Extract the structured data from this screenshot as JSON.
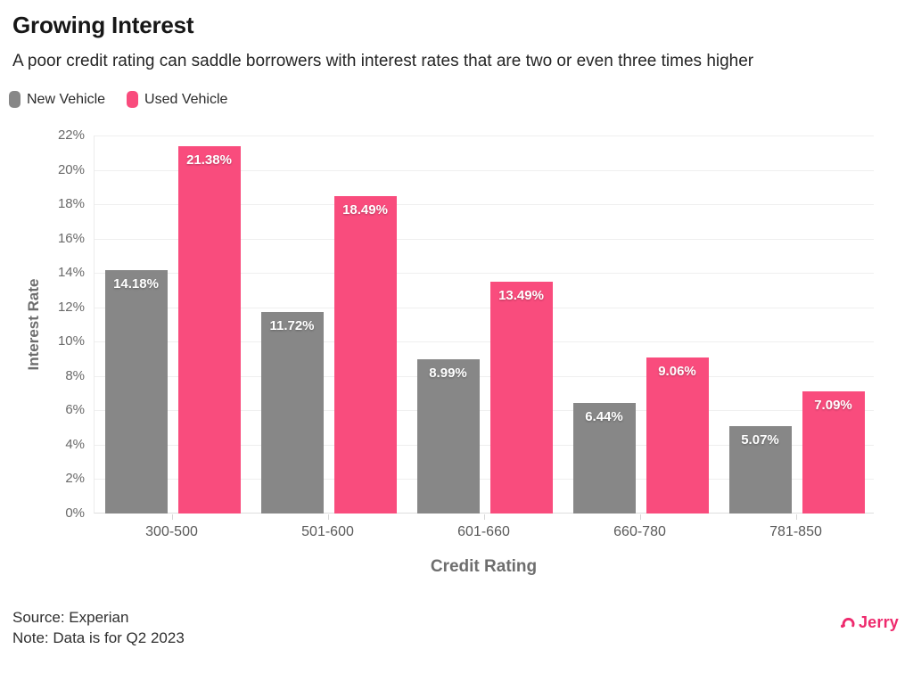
{
  "header": {
    "title": "Growing Interest",
    "subtitle": "A poor credit rating can saddle borrowers with interest rates that are two or even three times higher"
  },
  "legend": [
    {
      "label": "New Vehicle",
      "color": "#878787"
    },
    {
      "label": "Used Vehicle",
      "color": "#F94C7D"
    }
  ],
  "chart_data": {
    "type": "bar",
    "categories": [
      "300-500",
      "501-600",
      "601-660",
      "660-780",
      "781-850"
    ],
    "series": [
      {
        "name": "New Vehicle",
        "color": "#878787",
        "values": [
          14.18,
          11.72,
          8.99,
          6.44,
          5.07
        ]
      },
      {
        "name": "Used Vehicle",
        "color": "#F94C7D",
        "values": [
          21.38,
          18.49,
          13.49,
          9.06,
          7.09
        ]
      }
    ],
    "value_labels": [
      [
        "14.18%",
        "11.72%",
        "8.99%",
        "6.44%",
        "5.07%"
      ],
      [
        "21.38%",
        "18.49%",
        "13.49%",
        "9.06%",
        "7.09%"
      ]
    ],
    "title": "Growing Interest",
    "xlabel": "Credit Rating",
    "ylabel": "Interest Rate",
    "ylim": [
      0,
      22
    ],
    "ytick_step": 2,
    "yticks": [
      "0%",
      "2%",
      "4%",
      "6%",
      "8%",
      "10%",
      "12%",
      "14%",
      "16%",
      "18%",
      "20%",
      "22%"
    ],
    "grid": true,
    "legend_position": "top-left"
  },
  "footer": {
    "source": "Source: Experian",
    "note": "Note: Data is for Q2 2023",
    "brand": "Jerry",
    "brand_color": "#EE2A6D"
  }
}
